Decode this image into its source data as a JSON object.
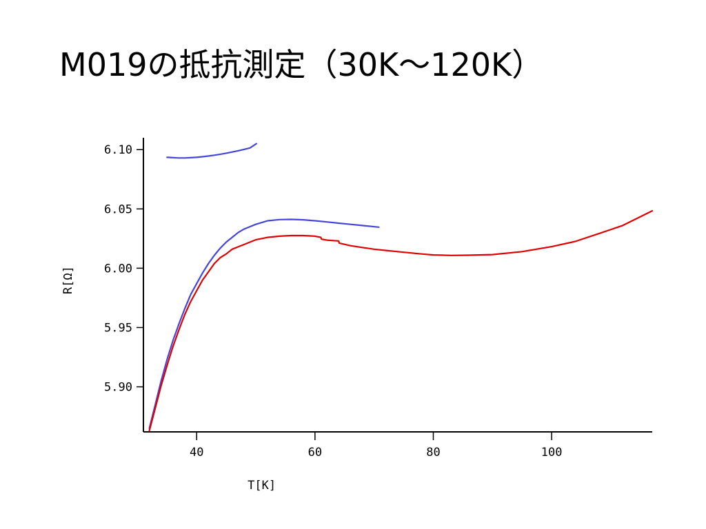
{
  "slide": {
    "title": "M019の抵抗測定（30K～120K）"
  },
  "chart_data": {
    "type": "line",
    "title": "",
    "xlabel": "T[K]",
    "ylabel": "R[Ω]",
    "xlim": [
      31,
      117
    ],
    "ylim": [
      5.862,
      6.11
    ],
    "xticks": [
      40,
      60,
      80,
      100
    ],
    "xtick_labels": [
      "40",
      "60",
      "80",
      "100"
    ],
    "yticks": [
      5.9,
      5.95,
      6.0,
      6.05,
      6.1
    ],
    "ytick_labels": [
      "5.90",
      "5.95",
      "6.00",
      "6.05",
      "6.10"
    ],
    "grid": false,
    "series": [
      {
        "color": "#4444dd",
        "x": [
          35.0,
          36.0,
          37.0,
          38.0,
          39.0,
          40.0,
          41.0,
          42.0,
          43.0,
          44.0,
          45.0,
          46.0,
          47.0,
          48.0,
          49.0,
          50.1
        ],
        "y": [
          6.0935,
          6.0932,
          6.093,
          6.093,
          6.0932,
          6.0935,
          6.094,
          6.0946,
          6.0953,
          6.0961,
          6.097,
          6.098,
          6.099,
          6.1002,
          6.1014,
          6.105
        ]
      },
      {
        "color": "#4444dd",
        "x": [
          32.0,
          33.0,
          34.0,
          35.0,
          36.0,
          37.0,
          38.0,
          39.0,
          40.0,
          41.0,
          42.0,
          43.0,
          44.0,
          45.0,
          46.0,
          47.0,
          48.0,
          49.0,
          50.0,
          52.0,
          54.0,
          56.0,
          58.0,
          60.0,
          62.0,
          64.0,
          66.0,
          68.0,
          70.8
        ],
        "y": [
          5.865,
          5.885,
          5.905,
          5.923,
          5.939,
          5.953,
          5.966,
          5.978,
          5.987,
          5.996,
          6.004,
          6.011,
          6.017,
          6.022,
          6.026,
          6.03,
          6.033,
          6.035,
          6.037,
          6.04,
          6.041,
          6.0412,
          6.0408,
          6.04,
          6.039,
          6.038,
          6.037,
          6.036,
          6.0346
        ]
      },
      {
        "color": "#dd0000",
        "x": [
          32.0,
          33.0,
          34.0,
          35.0,
          36.0,
          37.0,
          38.0,
          39.0,
          40.0,
          41.0,
          42.0,
          43.0,
          44.0,
          45.0,
          46.0,
          47.0,
          48.0,
          49.0,
          50.0,
          52.0,
          54.0,
          56.0,
          58.0,
          60.0,
          61.0,
          61.1,
          62.0,
          64.0,
          64.1,
          66.0,
          68.0,
          70.0,
          72.0,
          75.0,
          78.0,
          80.0,
          83.0,
          86.0,
          90.0,
          95.0,
          100.0,
          104.0,
          108.0,
          112.0,
          117.0
        ],
        "y": [
          5.863,
          5.882,
          5.901,
          5.918,
          5.934,
          5.948,
          5.961,
          5.972,
          5.981,
          5.99,
          5.997,
          6.004,
          6.009,
          6.012,
          6.016,
          6.018,
          6.02,
          6.022,
          6.024,
          6.026,
          6.027,
          6.0275,
          6.0275,
          6.027,
          6.026,
          6.0245,
          6.0237,
          6.023,
          6.0212,
          6.019,
          6.0175,
          6.016,
          6.015,
          6.0135,
          6.012,
          6.0112,
          6.0108,
          6.011,
          6.0115,
          6.014,
          6.0182,
          6.0226,
          6.0292,
          6.036,
          6.0484
        ]
      }
    ]
  }
}
